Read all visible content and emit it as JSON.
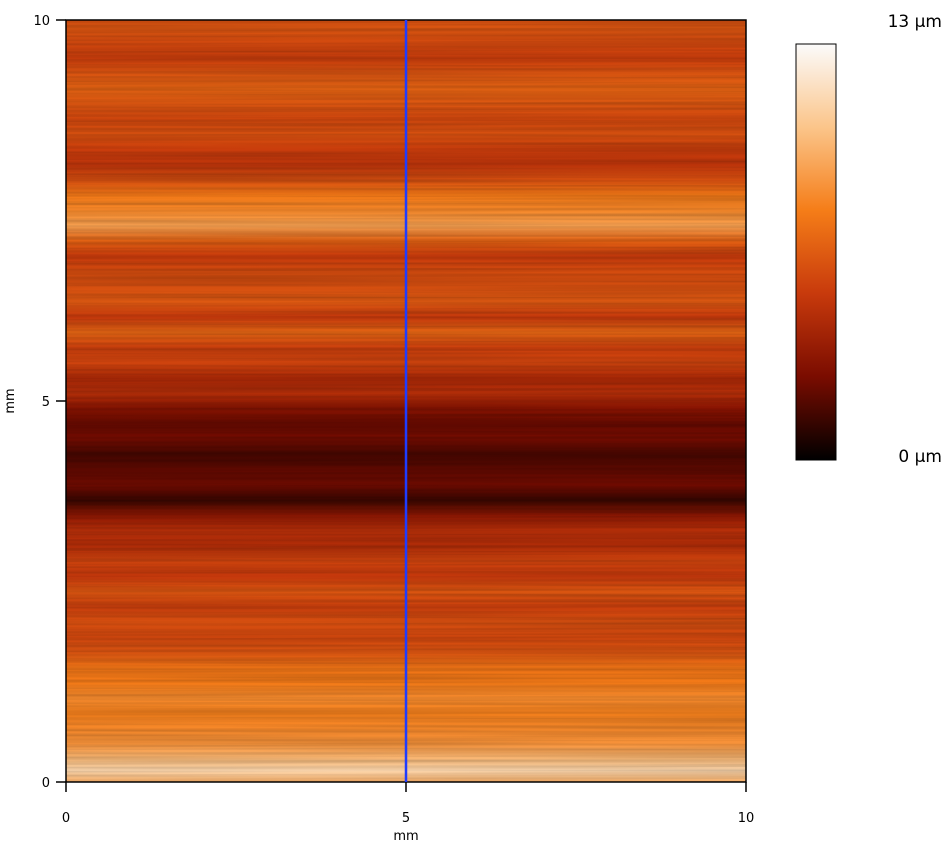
{
  "chart_data": {
    "type": "heatmap",
    "title": "",
    "xlabel": "mm",
    "ylabel": "mm",
    "xlim": [
      0,
      10
    ],
    "ylim": [
      0,
      10
    ],
    "x_ticks": [
      "0",
      "5",
      "10"
    ],
    "y_ticks": [
      "0",
      "5",
      "10"
    ],
    "colorbar": {
      "max_label": "13 µm",
      "min_label": "0 µm",
      "range": [
        0,
        13
      ],
      "unit": "µm",
      "colors": [
        "#000000",
        "#7a0c00",
        "#c83a0c",
        "#f57d18",
        "#fbc58a",
        "#fbfbfb"
      ]
    },
    "profile_line": {
      "x": 5,
      "color": "#1e3cff"
    },
    "row_profile": {
      "y": [
        0.0,
        0.15,
        0.3,
        0.5,
        0.7,
        0.9,
        1.1,
        1.3,
        1.5,
        1.7,
        1.9,
        2.1,
        2.3,
        2.5,
        2.7,
        2.9,
        3.1,
        3.3,
        3.5,
        3.7,
        3.9,
        4.1,
        4.3,
        4.5,
        4.7,
        4.9,
        5.1,
        5.3,
        5.5,
        5.7,
        5.9,
        6.1,
        6.3,
        6.5,
        6.7,
        6.9,
        7.1,
        7.3,
        7.5,
        7.7,
        7.9,
        8.1,
        8.3,
        8.5,
        8.7,
        8.9,
        9.1,
        9.3,
        9.5,
        9.7,
        9.9,
        10.0
      ],
      "height": [
        9.6,
        11.2,
        10.0,
        8.6,
        8.2,
        7.9,
        8.3,
        7.7,
        7.4,
        6.2,
        5.7,
        6.0,
        5.4,
        6.3,
        5.1,
        5.6,
        4.4,
        4.6,
        3.2,
        1.2,
        2.4,
        2.0,
        1.5,
        2.5,
        2.2,
        3.0,
        4.6,
        4.2,
        5.6,
        5.4,
        6.9,
        5.1,
        6.4,
        6.0,
        5.9,
        5.2,
        6.7,
        9.1,
        8.2,
        7.6,
        6.0,
        4.9,
        5.3,
        6.1,
        5.7,
        6.3,
        6.8,
        6.2,
        5.3,
        5.8,
        6.3,
        6.0
      ]
    }
  }
}
